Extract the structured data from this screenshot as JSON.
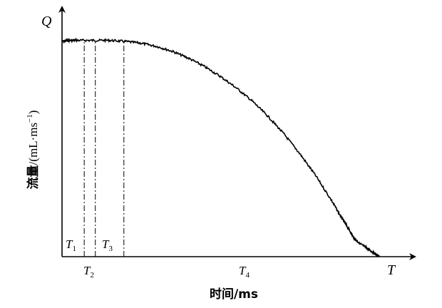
{
  "chart_data": {
    "type": "line",
    "axis_letters": {
      "y": "Q",
      "x": "T"
    },
    "xlabel": "时间/ms",
    "ylabel": {
      "cn": "流量",
      "unit_main": "/(mL·ms",
      "unit_sup": "−1",
      "unit_close": ")"
    },
    "phase_labels": [
      {
        "label": "T",
        "sub": "1"
      },
      {
        "label": "T",
        "sub": "2"
      },
      {
        "label": "T",
        "sub": "3"
      },
      {
        "label": "T",
        "sub": "4"
      }
    ],
    "phase_boundaries": [
      0.07,
      0.105,
      0.195
    ],
    "xlim": [
      0,
      1
    ],
    "ylim": [
      0,
      1
    ],
    "series": [
      {
        "x": [
          0.0,
          0.02,
          0.05,
          0.1,
          0.15,
          0.2,
          0.25,
          0.3,
          0.35,
          0.4,
          0.45,
          0.5,
          0.55,
          0.6,
          0.65,
          0.7,
          0.75,
          0.8,
          0.85,
          0.88,
          0.9,
          0.92,
          0.94,
          0.96,
          0.98,
          0.99,
          1.0
        ],
        "y": [
          0.98,
          0.985,
          0.985,
          0.985,
          0.985,
          0.98,
          0.972,
          0.957,
          0.934,
          0.903,
          0.865,
          0.82,
          0.768,
          0.708,
          0.638,
          0.558,
          0.468,
          0.368,
          0.255,
          0.18,
          0.135,
          0.085,
          0.058,
          0.04,
          0.02,
          0.01,
          0.0
        ]
      }
    ],
    "grid": false,
    "legend": "none"
  }
}
